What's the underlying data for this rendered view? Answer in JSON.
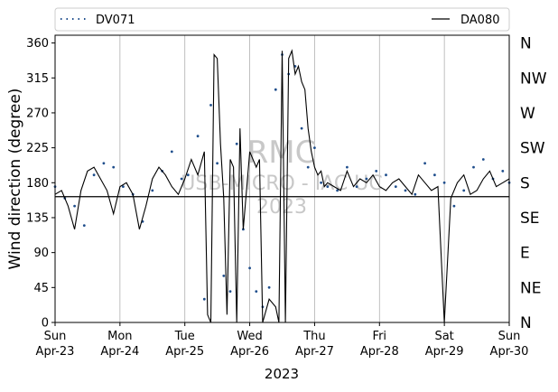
{
  "chart_data": {
    "type": "line",
    "title": "",
    "xlabel": "2023",
    "ylabel": "Wind direction (degree)",
    "ylim": [
      0,
      370
    ],
    "xlim": [
      "2023-04-23",
      "2023-04-30"
    ],
    "yticks": [
      0,
      45,
      90,
      135,
      180,
      225,
      270,
      315,
      360
    ],
    "xticks": [
      {
        "day": "Sun",
        "date": "Apr-23"
      },
      {
        "day": "Mon",
        "date": "Apr-24"
      },
      {
        "day": "Tue",
        "date": "Apr-25"
      },
      {
        "day": "Wed",
        "date": "Apr-26"
      },
      {
        "day": "Thu",
        "date": "Apr-27"
      },
      {
        "day": "Fri",
        "date": "Apr-28"
      },
      {
        "day": "Sat",
        "date": "Apr-29"
      },
      {
        "day": "Sun",
        "date": "Apr-30"
      }
    ],
    "compass_labels": [
      "N",
      "NE",
      "E",
      "SE",
      "S",
      "SW",
      "W",
      "NW",
      "N"
    ],
    "reference_line": 162,
    "grid": "x-only",
    "legend_placement": "top, above plot",
    "watermark": [
      "RMC",
      "USB-MICRO - IAC UC",
      "2023"
    ],
    "series": [
      {
        "name": "DV071",
        "style": "dotted",
        "color": "#1f4e8c",
        "x_days": [
          0.0,
          0.15,
          0.3,
          0.45,
          0.6,
          0.75,
          0.9,
          1.05,
          1.2,
          1.35,
          1.5,
          1.65,
          1.8,
          1.95,
          2.05,
          2.2,
          2.3,
          2.4,
          2.5,
          2.6,
          2.7,
          2.8,
          2.9,
          3.0,
          3.1,
          3.2,
          3.3,
          3.4,
          3.5,
          3.6,
          3.7,
          3.8,
          3.9,
          4.0,
          4.1,
          4.2,
          4.35,
          4.5,
          4.65,
          4.8,
          4.95,
          5.1,
          5.25,
          5.4,
          5.55,
          5.7,
          5.85,
          6.0,
          6.15,
          6.3,
          6.45,
          6.6,
          6.75,
          6.9,
          7.0
        ],
        "values": [
          175,
          160,
          150,
          125,
          190,
          205,
          200,
          175,
          165,
          130,
          170,
          195,
          220,
          185,
          190,
          240,
          30,
          280,
          205,
          60,
          40,
          230,
          120,
          70,
          40,
          20,
          45,
          300,
          345,
          320,
          330,
          250,
          200,
          225,
          180,
          175,
          170,
          200,
          175,
          185,
          195,
          190,
          175,
          170,
          165,
          205,
          190,
          180,
          150,
          170,
          200,
          210,
          185,
          195,
          180
        ]
      },
      {
        "name": "DA080",
        "style": "solid",
        "color": "#000000",
        "x_days": [
          0.0,
          0.1,
          0.2,
          0.3,
          0.4,
          0.5,
          0.6,
          0.7,
          0.8,
          0.9,
          1.0,
          1.1,
          1.2,
          1.3,
          1.4,
          1.5,
          1.6,
          1.7,
          1.8,
          1.9,
          2.0,
          2.1,
          2.2,
          2.3,
          2.35,
          2.4,
          2.45,
          2.5,
          2.55,
          2.6,
          2.65,
          2.7,
          2.75,
          2.8,
          2.85,
          2.9,
          3.0,
          3.1,
          3.15,
          3.2,
          3.3,
          3.4,
          3.45,
          3.5,
          3.55,
          3.6,
          3.65,
          3.7,
          3.75,
          3.8,
          3.85,
          3.9,
          3.95,
          4.0,
          4.05,
          4.1,
          4.15,
          4.2,
          4.3,
          4.4,
          4.5,
          4.6,
          4.7,
          4.8,
          4.9,
          5.0,
          5.1,
          5.2,
          5.3,
          5.4,
          5.5,
          5.6,
          5.7,
          5.8,
          5.9,
          6.0,
          6.1,
          6.2,
          6.3,
          6.4,
          6.5,
          6.6,
          6.7,
          6.8,
          6.9,
          7.0
        ],
        "values": [
          165,
          170,
          150,
          120,
          170,
          195,
          200,
          185,
          170,
          140,
          175,
          180,
          165,
          120,
          150,
          185,
          200,
          190,
          175,
          165,
          185,
          210,
          190,
          220,
          10,
          0,
          345,
          340,
          230,
          160,
          10,
          210,
          200,
          0,
          250,
          120,
          220,
          200,
          210,
          0,
          30,
          20,
          0,
          350,
          0,
          340,
          350,
          320,
          330,
          310,
          300,
          250,
          220,
          200,
          190,
          195,
          175,
          180,
          175,
          170,
          195,
          175,
          185,
          180,
          190,
          175,
          170,
          180,
          185,
          175,
          165,
          190,
          180,
          170,
          175,
          0,
          160,
          180,
          190,
          165,
          170,
          185,
          195,
          175,
          180,
          185
        ]
      }
    ]
  }
}
